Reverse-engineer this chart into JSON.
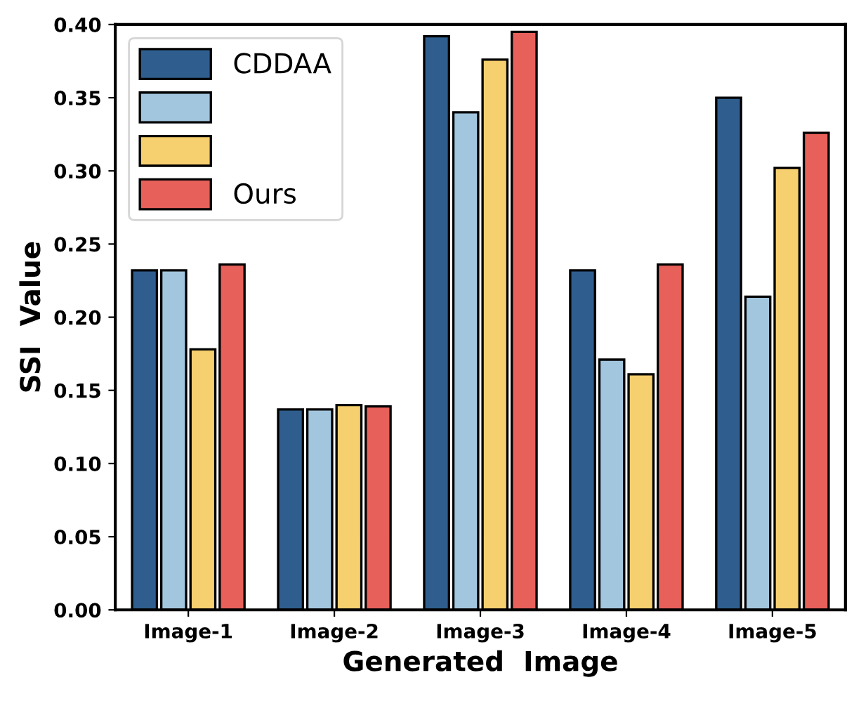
{
  "chart_data": {
    "type": "bar",
    "xlabel": "Generated  Image",
    "ylabel": "SSI  Value",
    "categories": [
      "Image-1",
      "Image-2",
      "Image-3",
      "Image-4",
      "Image-5"
    ],
    "series": [
      {
        "name": "CDDAA",
        "color": "#2f5e8e",
        "values": [
          0.232,
          0.137,
          0.392,
          0.232,
          0.35
        ]
      },
      {
        "color": "#a3c6df",
        "values": [
          0.232,
          0.137,
          0.34,
          0.171,
          0.214
        ]
      },
      {
        "color": "#f6cf6e",
        "values": [
          0.178,
          0.14,
          0.376,
          0.161,
          0.302
        ]
      },
      {
        "name": "Ours",
        "color": "#e8605a",
        "values": [
          0.236,
          0.139,
          0.395,
          0.236,
          0.326
        ]
      }
    ],
    "ylim": [
      0,
      0.4
    ],
    "yticks": [
      {
        "value": 0,
        "label": "0.00"
      },
      {
        "value": 0.05,
        "label": "0.05"
      },
      {
        "value": 0.1,
        "label": "0.10"
      },
      {
        "value": 0.15,
        "label": "0.15"
      },
      {
        "value": 0.2,
        "label": "0.20"
      },
      {
        "value": 0.25,
        "label": "0.25"
      },
      {
        "value": 0.3,
        "label": "0.30"
      },
      {
        "value": 0.35,
        "label": "0.35"
      },
      {
        "value": 0.4,
        "label": "0.40"
      }
    ],
    "grid": false,
    "legend": "top left"
  }
}
